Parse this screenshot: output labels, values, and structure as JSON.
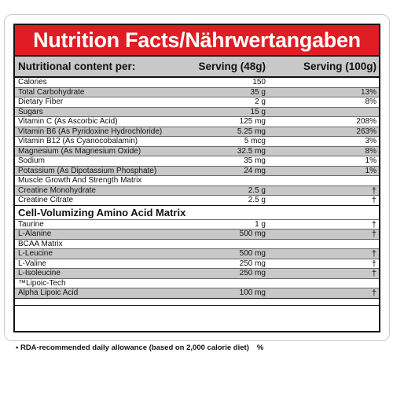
{
  "title": "Nutrition Facts/Nährwertangaben",
  "header": {
    "label": "Nutritional content per:",
    "serving1": "Serving (48g)",
    "serving2": "Serving (100g)"
  },
  "rows": [
    {
      "name": "Calories",
      "value": "150",
      "pct": ""
    },
    {
      "name": "Total Carbohydrate",
      "value": "35 g",
      "pct": "13%"
    },
    {
      "name": "Dietary Fiber",
      "value": "2 g",
      "pct": "8%"
    },
    {
      "name": "Sugars",
      "value": "15 g",
      "pct": ""
    },
    {
      "name": "Vitamin C (As Ascorbic Acid)",
      "value": "125 mg",
      "pct": "208%"
    },
    {
      "name": "Vitamin B6 (As Pyridoxine Hydrochloride)",
      "value": "5.25 mg",
      "pct": "263%"
    },
    {
      "name": "Vitamin B12 (As Cyanocobalamin)",
      "value": "5 mcg",
      "pct": "3%"
    },
    {
      "name": "Magnesium (As Magnesium Oxide)",
      "value": "32.5 mg",
      "pct": "8%"
    },
    {
      "name": "Sodium",
      "value": "35 mg",
      "pct": "1%"
    },
    {
      "name": "Potassium (As Dipotassium Phosphate)",
      "value": "24 mg",
      "pct": "1%"
    },
    {
      "name": "Muscle Growth And Strength Matrix",
      "value": "",
      "pct": ""
    },
    {
      "name": "Creatine Monohydrate",
      "value": "2.5 g",
      "pct": "†"
    },
    {
      "name": "Creatine Citrate",
      "value": "2.5 g",
      "pct": "†"
    }
  ],
  "section2": {
    "title": "Cell-Volumizing Amino Acid Matrix",
    "rows": [
      {
        "name": "Taurine",
        "value": "1 g",
        "pct": "†"
      },
      {
        "name": "L-Alanine",
        "value": "500 mg",
        "pct": "†"
      },
      {
        "name": "BCAA Matrix",
        "value": "",
        "pct": ""
      },
      {
        "name": "L-Leucine",
        "value": "500 mg",
        "pct": "†"
      },
      {
        "name": "L-Valine",
        "value": "250 mg",
        "pct": "†"
      },
      {
        "name": "L-Isoleucine",
        "value": "250 mg",
        "pct": "†"
      },
      {
        "name": "™Lipoic-Tech",
        "value": "",
        "pct": ""
      },
      {
        "name": "Alpha Lipoic Acid",
        "value": "100 mg",
        "pct": "†"
      }
    ]
  },
  "footnote": "• RDA-recommended daily allowance (based on 2,000 calorie diet)",
  "footnote_pct": "%",
  "colors": {
    "title_bg": "#e01c24",
    "shade": "#c8c8c8"
  }
}
